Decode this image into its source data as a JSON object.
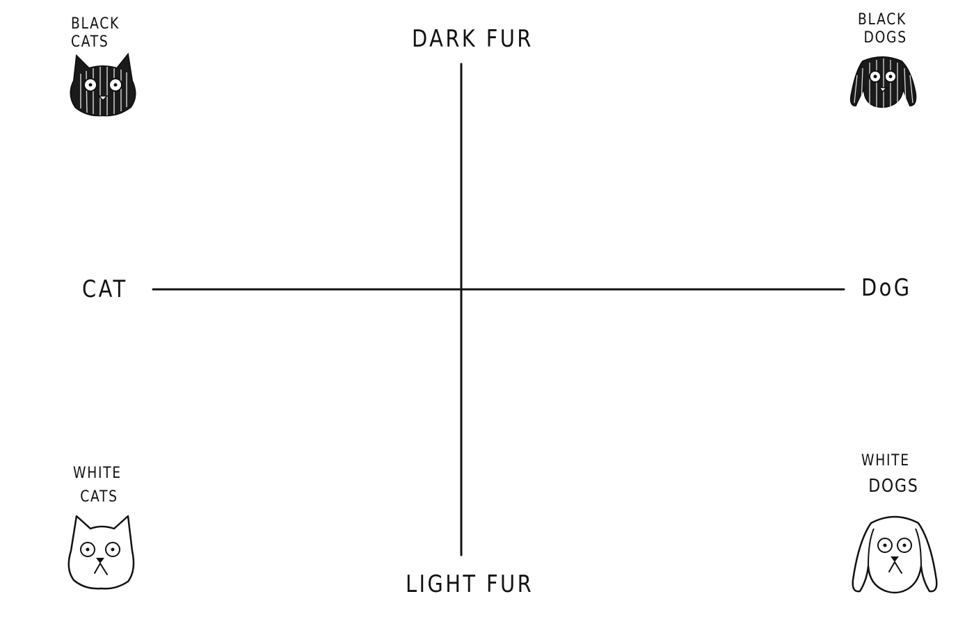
{
  "axes": {
    "top": "DARK FUR",
    "bottom": "LIGHT FUR",
    "left": "CAT",
    "right": "DoG"
  },
  "quadrants": {
    "top_left": {
      "line1": "BLACK",
      "line2": "CATS",
      "icon": "black-cat-icon"
    },
    "top_right": {
      "line1": "BLACK",
      "line2": "DOGS",
      "icon": "black-dog-icon"
    },
    "bottom_left": {
      "line1": "WHITE",
      "line2": "CATS",
      "icon": "white-cat-icon"
    },
    "bottom_right": {
      "line1": "WHITE",
      "line2": "DOGS",
      "icon": "white-dog-icon"
    }
  },
  "colors": {
    "ink": "#111111",
    "background": "#ffffff"
  }
}
